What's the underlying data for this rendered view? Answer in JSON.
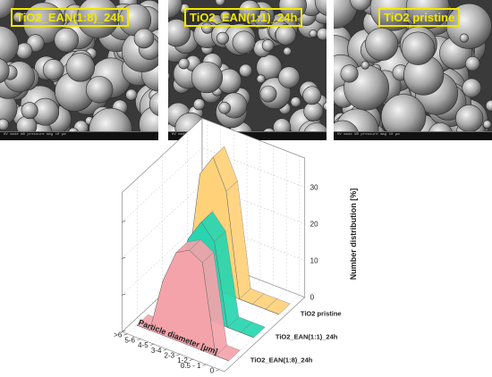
{
  "micrographs": [
    {
      "label": "TiO2_EAN(1:8)_24h",
      "footer": "HV   mode   WD   pressure   mag   10 µm"
    },
    {
      "label": "TiO2_EAN(1:1)_24h",
      "footer": "HV   mode   WD   pressure   mag   10 µm"
    },
    {
      "label": "TiO2 pristine",
      "footer": "HV   mode   WD   pressure   mag   10 µm"
    }
  ],
  "chart_data": {
    "type": "area",
    "style": "3d-waterfall",
    "categories": [
      "0",
      "0.5 - 1",
      "1-2",
      "2-3",
      "3-4",
      "4-5",
      "5-6",
      ">6"
    ],
    "series": [
      {
        "name": "TiO2_EAN(1:8)_24h",
        "values": [
          0,
          0,
          24,
          26,
          24,
          15,
          0,
          0
        ],
        "color": "#f5a3aa"
      },
      {
        "name": "TiO2_EAN(1:1)_24h",
        "values": [
          0,
          0,
          0,
          22,
          26,
          20,
          0,
          0
        ],
        "color": "#27d6b0"
      },
      {
        "name": "TiO2 pristine",
        "values": [
          0,
          0,
          0,
          0,
          28,
          36,
          30,
          0
        ],
        "color": "#ffd27a"
      }
    ],
    "xlabel": "Particle diameter [µm]",
    "zlabel": "Number distribution [%]",
    "zticks": [
      0,
      10,
      20,
      30
    ],
    "zlim": [
      0,
      38
    ],
    "grid": true
  }
}
